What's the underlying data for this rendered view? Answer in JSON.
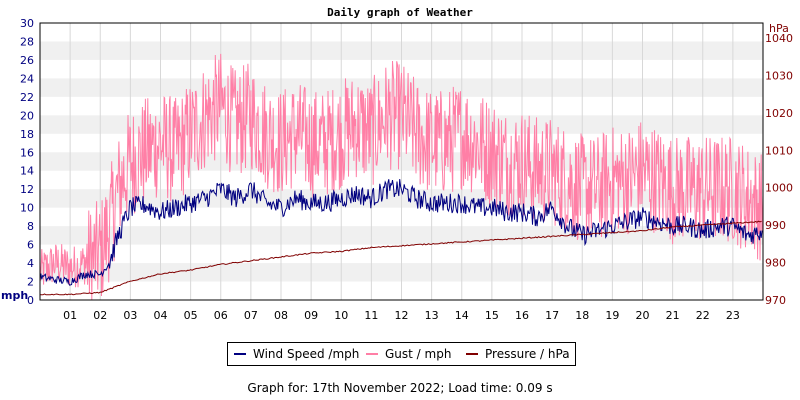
{
  "page": {
    "title": "Daily graph of Weather",
    "footer": "Graph for: 17th November 2022; Load time: 0.09 s"
  },
  "legend": {
    "items": [
      {
        "label": "Wind Speed /mph",
        "color": "#000080"
      },
      {
        "label": "Gust / mph",
        "color": "#ff7fa6"
      },
      {
        "label": "Pressure / hPa",
        "color": "#800000"
      }
    ]
  },
  "chart_data": {
    "type": "line",
    "title": "Daily graph of Weather",
    "x_ticks": [
      "01",
      "02",
      "03",
      "04",
      "05",
      "06",
      "07",
      "08",
      "09",
      "10",
      "11",
      "12",
      "13",
      "14",
      "15",
      "16",
      "17",
      "18",
      "19",
      "20",
      "21",
      "22",
      "23"
    ],
    "xlim": [
      0,
      24
    ],
    "left_axis": {
      "label": "mph",
      "ylim": [
        0,
        30
      ],
      "ticks": [
        0,
        2,
        4,
        6,
        8,
        10,
        12,
        14,
        16,
        18,
        20,
        22,
        24,
        26,
        28,
        30
      ],
      "color": "#000080"
    },
    "right_axis": {
      "label": "hPa",
      "ylim": [
        970,
        1044
      ],
      "ticks": [
        970,
        980,
        990,
        1000,
        1010,
        1020,
        1030,
        1040
      ],
      "color": "#800000"
    },
    "grid": true,
    "series": [
      {
        "name": "Wind Speed /mph",
        "axis": "left",
        "color": "#000080",
        "x": [
          0,
          0.5,
          1,
          1.5,
          2,
          2.3,
          2.6,
          3,
          3.5,
          4,
          4.5,
          5,
          5.5,
          6,
          6.5,
          7,
          7.5,
          8,
          8.5,
          9,
          9.5,
          10,
          10.5,
          11,
          11.5,
          12,
          12.5,
          13,
          13.5,
          14,
          14.5,
          15,
          15.5,
          16,
          16.5,
          17,
          17.5,
          18,
          18.5,
          19,
          19.5,
          20,
          20.5,
          21,
          21.5,
          22,
          22.5,
          23,
          23.5,
          24
        ],
        "y": [
          2.5,
          2.2,
          2.0,
          2.8,
          2.8,
          4,
          7,
          10,
          10.3,
          9.5,
          10,
          10.5,
          11,
          12,
          11,
          12,
          10.5,
          10,
          11,
          10.5,
          10.5,
          11,
          11.5,
          11,
          12,
          12,
          11,
          10.5,
          10.5,
          10.5,
          10,
          10,
          9.5,
          9.5,
          9,
          10,
          8,
          7,
          7.5,
          8,
          8.5,
          9,
          8.5,
          8,
          8,
          7.5,
          8,
          8,
          7,
          7.5
        ]
      },
      {
        "name": "Gust / mph",
        "axis": "left",
        "color": "#ff7fa6",
        "x": [
          0,
          0.5,
          1,
          1.5,
          2,
          2.3,
          2.6,
          3,
          3.5,
          4,
          4.5,
          5,
          5.5,
          6,
          6.5,
          7,
          7.5,
          8,
          8.5,
          9,
          9.5,
          10,
          10.5,
          11,
          11.5,
          12,
          12.5,
          13,
          13.5,
          14,
          14.5,
          15,
          15.5,
          16,
          16.5,
          17,
          17.5,
          18,
          18.5,
          19,
          19.5,
          20,
          20.5,
          21,
          21.5,
          22,
          22.5,
          23,
          23.5,
          24
        ],
        "y": [
          3,
          4,
          3.5,
          4,
          5,
          8,
          12,
          15,
          16,
          17,
          16,
          18,
          20,
          21,
          19,
          20,
          18,
          17,
          18,
          17,
          17,
          18,
          19,
          18,
          20,
          20,
          18,
          17,
          17,
          18,
          17,
          16,
          15,
          15,
          14,
          14,
          13,
          12,
          12,
          13,
          13,
          14,
          13,
          12,
          12,
          12,
          12,
          12,
          11,
          10
        ]
      },
      {
        "name": "Pressure / hPa",
        "axis": "right",
        "color": "#800000",
        "x": [
          0,
          1,
          2,
          3,
          4,
          5,
          6,
          7,
          8,
          9,
          10,
          11,
          12,
          13,
          14,
          15,
          16,
          17,
          18,
          19,
          20,
          21,
          22,
          23,
          24
        ],
        "y": [
          971.5,
          971.5,
          972,
          975,
          977,
          978,
          979.5,
          980.5,
          981.5,
          982.5,
          983,
          984,
          984.5,
          985,
          985.5,
          986,
          986.5,
          987,
          987.5,
          988,
          988.5,
          989.5,
          990,
          990.5,
          991
        ]
      }
    ]
  }
}
